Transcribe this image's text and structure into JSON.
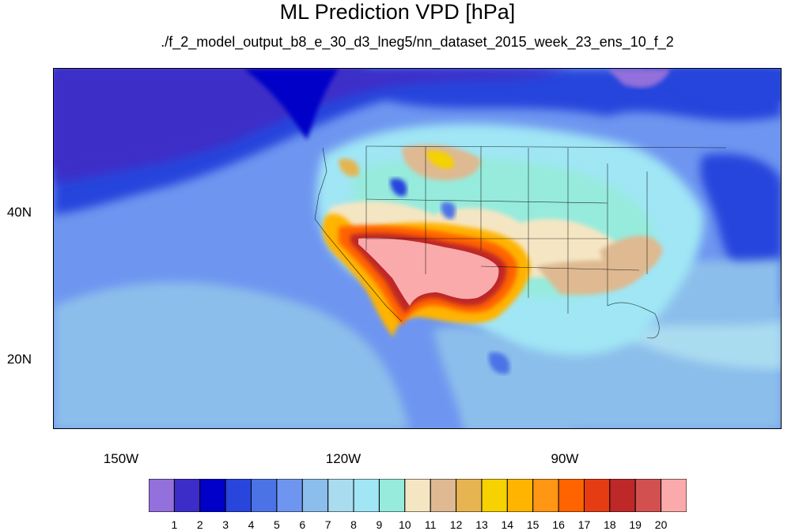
{
  "title": "ML Prediction VPD [hPa]",
  "subtitle": "./f_2_model_output_b8_e_30_d3_lneg5/nn_dataset_2015_week_23_ens_10_f_2",
  "lat_labels": [
    "40N",
    "20N"
  ],
  "lon_labels": [
    "150W",
    "120W",
    "90W"
  ],
  "colorbar": {
    "labels": [
      "1",
      "2",
      "3",
      "4",
      "5",
      "6",
      "7",
      "8",
      "9",
      "10",
      "11",
      "12",
      "13",
      "14",
      "15",
      "16",
      "17",
      "18",
      "19",
      "20"
    ],
    "colors": [
      "#9370db",
      "#3c2dc8",
      "#0000c8",
      "#2845dc",
      "#4b73e6",
      "#6e96f0",
      "#8cbeeb",
      "#aadcf0",
      "#a0e6f5",
      "#96ebdc",
      "#f5e6c3",
      "#deb991",
      "#e6b450",
      "#f5d200",
      "#ffb400",
      "#ff9614",
      "#ff6400",
      "#e63c14",
      "#be2828",
      "#d25050",
      "#faaaaa"
    ]
  }
}
